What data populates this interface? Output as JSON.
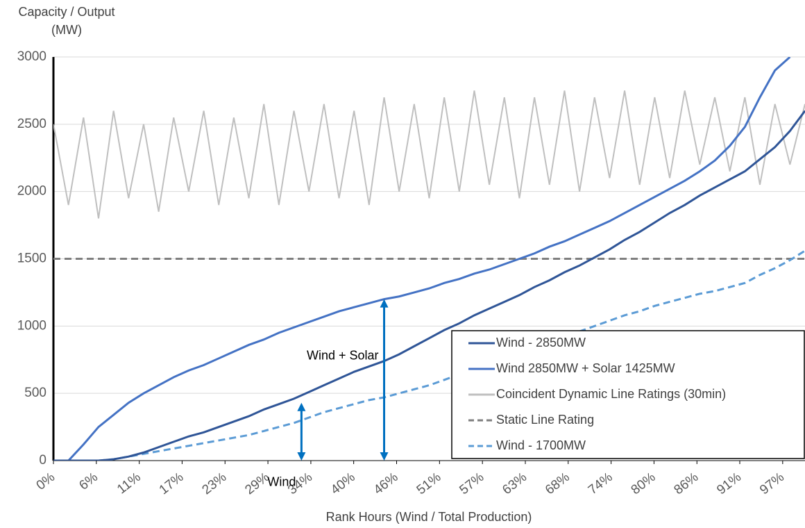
{
  "chart_data": {
    "type": "line",
    "y_title": [
      "Capacity / Output",
      "(MW)"
    ],
    "x_title": "Rank Hours (Wind / Total Production)",
    "x": [
      0,
      2,
      4,
      6,
      8,
      10,
      12,
      14,
      16,
      18,
      20,
      22,
      24,
      26,
      28,
      30,
      32,
      34,
      36,
      38,
      40,
      42,
      44,
      46,
      48,
      50,
      52,
      54,
      56,
      58,
      60,
      62,
      64,
      66,
      68,
      70,
      72,
      74,
      76,
      78,
      80,
      82,
      84,
      86,
      88,
      90,
      92,
      94,
      96,
      98,
      100
    ],
    "xlim": [
      0,
      100
    ],
    "ylim": [
      0,
      3000
    ],
    "yticks": [
      0,
      500,
      1000,
      1500,
      2000,
      2500,
      3000
    ],
    "xticks": [
      {
        "value": 0,
        "label": "0%"
      },
      {
        "value": 5.71,
        "label": "6%"
      },
      {
        "value": 11.42,
        "label": "11%"
      },
      {
        "value": 17.12,
        "label": "17%"
      },
      {
        "value": 22.83,
        "label": "23%"
      },
      {
        "value": 28.54,
        "label": "29%"
      },
      {
        "value": 34.25,
        "label": "34%"
      },
      {
        "value": 39.95,
        "label": "40%"
      },
      {
        "value": 45.66,
        "label": "46%"
      },
      {
        "value": 51.37,
        "label": "51%"
      },
      {
        "value": 57.08,
        "label": "57%"
      },
      {
        "value": 62.79,
        "label": "63%"
      },
      {
        "value": 68.49,
        "label": "68%"
      },
      {
        "value": 74.2,
        "label": "74%"
      },
      {
        "value": 79.91,
        "label": "80%"
      },
      {
        "value": 85.62,
        "label": "86%"
      },
      {
        "value": 91.32,
        "label": "91%"
      },
      {
        "value": 97.03,
        "label": "97%"
      }
    ],
    "grid": true,
    "legend": "lower right",
    "series": [
      {
        "name": "Coincident Dynamic Line Ratings (30min)",
        "color": "#bfbfbf",
        "dash": "solid",
        "values": [
          2500,
          1900,
          2550,
          1800,
          2600,
          1950,
          2500,
          1850,
          2550,
          2000,
          2600,
          1900,
          2550,
          1950,
          2650,
          1900,
          2600,
          2000,
          2650,
          1950,
          2600,
          1900,
          2700,
          2000,
          2650,
          1950,
          2700,
          2000,
          2750,
          2050,
          2700,
          1950,
          2700,
          2050,
          2750,
          2000,
          2700,
          2100,
          2750,
          2050,
          2700,
          2100,
          2750,
          2200,
          2700,
          2150,
          2700,
          2050,
          2650,
          2200,
          2650
        ]
      },
      {
        "name": "Static Line Rating",
        "color": "#7f7f7f",
        "dash": "dashed",
        "values": [
          1500,
          1500,
          1500,
          1500,
          1500,
          1500,
          1500,
          1500,
          1500,
          1500,
          1500,
          1500,
          1500,
          1500,
          1500,
          1500,
          1500,
          1500,
          1500,
          1500,
          1500,
          1500,
          1500,
          1500,
          1500,
          1500,
          1500,
          1500,
          1500,
          1500,
          1500,
          1500,
          1500,
          1500,
          1500,
          1500,
          1500,
          1500,
          1500,
          1500,
          1500,
          1500,
          1500,
          1500,
          1500,
          1500,
          1500,
          1500,
          1500,
          1500,
          1500
        ]
      },
      {
        "name": "Wind - 1700MW",
        "color": "#5b9bd5",
        "dash": "dashed",
        "values": [
          0,
          0,
          0,
          0,
          10,
          30,
          50,
          70,
          90,
          110,
          130,
          150,
          170,
          190,
          220,
          250,
          280,
          320,
          360,
          390,
          420,
          450,
          470,
          500,
          530,
          560,
          600,
          640,
          680,
          720,
          760,
          800,
          840,
          880,
          920,
          960,
          1000,
          1040,
          1080,
          1110,
          1150,
          1180,
          1210,
          1240,
          1260,
          1290,
          1320,
          1380,
          1430,
          1490,
          1560
        ]
      },
      {
        "name": "Wind 2850MW + Solar 1425MW",
        "color": "#4472c4",
        "dash": "solid",
        "values": [
          0,
          0,
          120,
          250,
          340,
          430,
          500,
          560,
          620,
          670,
          710,
          760,
          810,
          860,
          900,
          950,
          990,
          1030,
          1070,
          1110,
          1140,
          1170,
          1200,
          1220,
          1250,
          1280,
          1320,
          1350,
          1390,
          1420,
          1460,
          1500,
          1540,
          1590,
          1630,
          1680,
          1730,
          1780,
          1840,
          1900,
          1960,
          2020,
          2080,
          2150,
          2230,
          2340,
          2480,
          2700,
          2900,
          3000,
          null
        ]
      },
      {
        "name": "Wind - 2850MW",
        "color": "#2f5597",
        "dash": "solid",
        "values": [
          0,
          0,
          0,
          0,
          10,
          30,
          60,
          100,
          140,
          180,
          210,
          250,
          290,
          330,
          380,
          420,
          460,
          510,
          560,
          610,
          660,
          700,
          740,
          790,
          850,
          910,
          970,
          1020,
          1080,
          1130,
          1180,
          1230,
          1290,
          1340,
          1400,
          1450,
          1510,
          1570,
          1640,
          1700,
          1770,
          1840,
          1900,
          1970,
          2030,
          2090,
          2150,
          2240,
          2330,
          2450,
          2600
        ]
      }
    ],
    "legend_order": [
      4,
      3,
      0,
      1,
      2
    ],
    "annotations": [
      {
        "text": "Wind + Solar",
        "x": 44,
        "y": 1200
      },
      {
        "text": "Wind",
        "x": 33,
        "y": 430
      }
    ]
  }
}
